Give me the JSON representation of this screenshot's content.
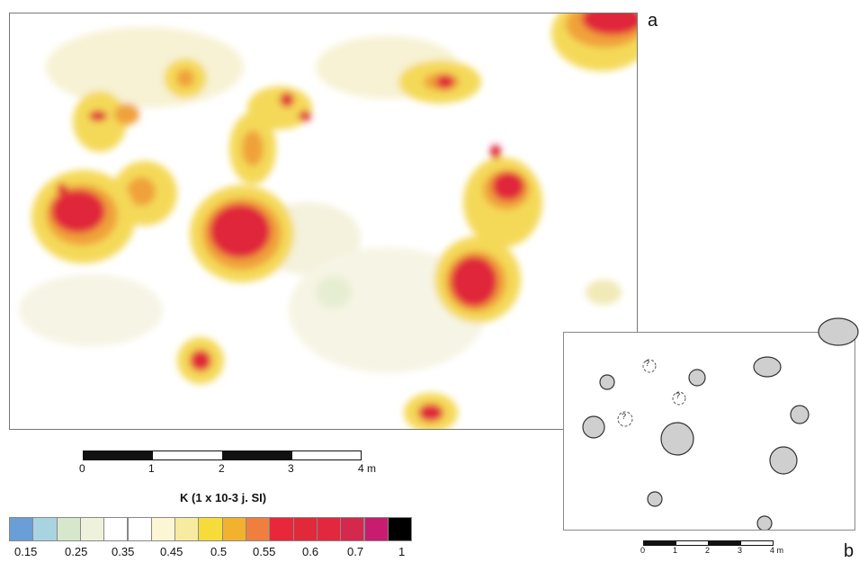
{
  "panels": {
    "a": "a",
    "b": "b"
  },
  "scale_a": {
    "ticks": [
      "0",
      "1",
      "2",
      "3",
      "4 m"
    ]
  },
  "scale_b": {
    "ticks": [
      "0",
      "1",
      "2",
      "3",
      "4 m"
    ]
  },
  "legend": {
    "title": "K  (1 x 10-3 j. SI)",
    "labels": [
      "0.15",
      "0.25",
      "0.35",
      "0.45",
      "0.5",
      "0.55",
      "0.6",
      "0.7",
      "1"
    ],
    "colors": [
      "#6a9ed6",
      "#a8d4e2",
      "#d7e7cc",
      "#eef2dc",
      "#ffffff",
      "#ffffff",
      "#fdf6d5",
      "#f6eba0",
      "#f5dc3a",
      "#f2b12f",
      "#f07f3f",
      "#e8283a",
      "#e02a3a",
      "#e2283e",
      "#d4284c",
      "#c81c6e",
      "#000000"
    ]
  },
  "plan_marks": [
    "?",
    "?",
    "?"
  ]
}
